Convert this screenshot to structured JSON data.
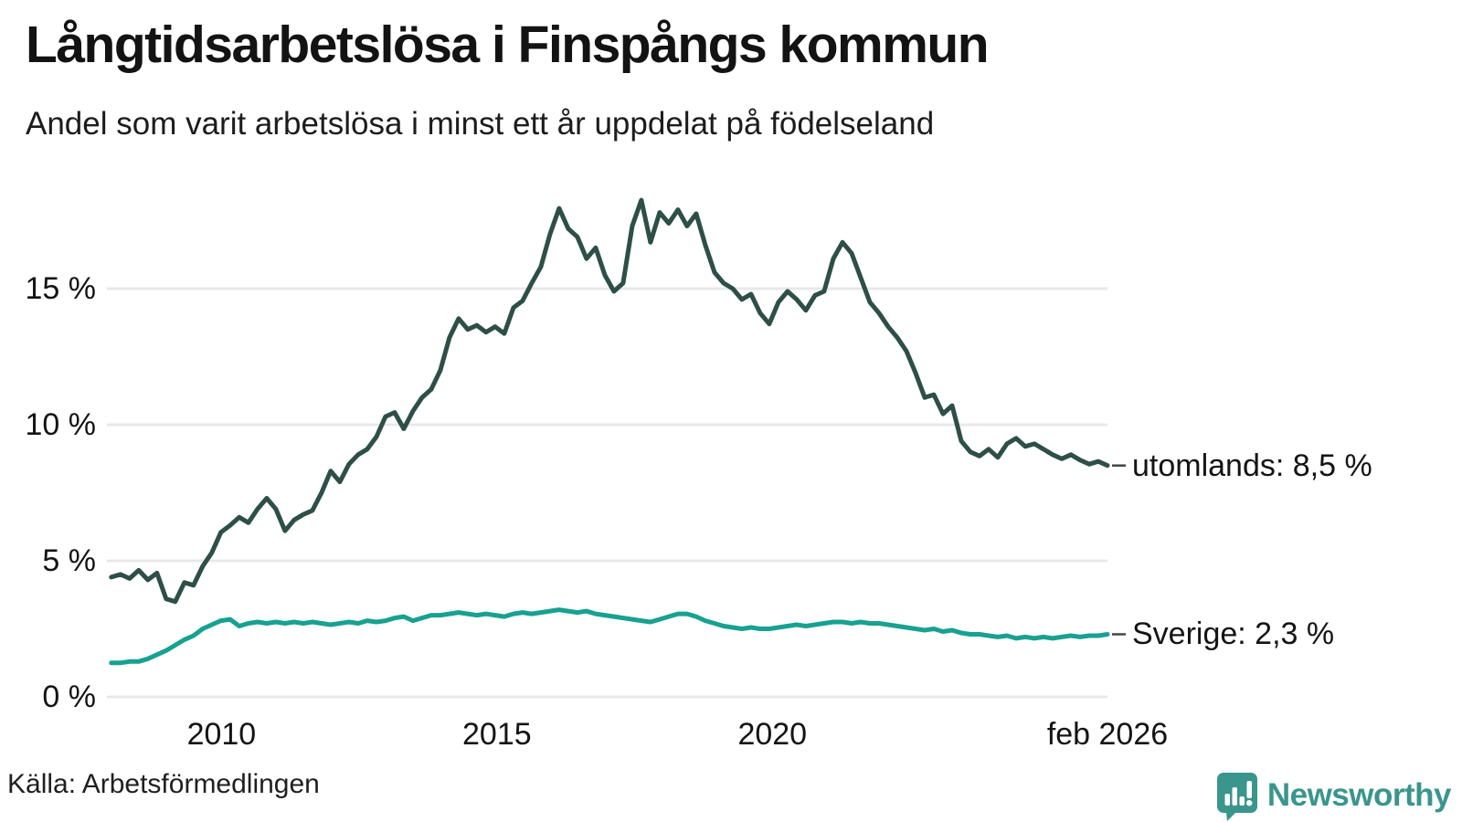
{
  "chart_data": {
    "type": "line",
    "title": "Långtidsarbetslösa i Finspångs kommun",
    "subtitle": "Andel som varit arbetslösa i minst ett år uppdelat på födelseland",
    "source": "Källa: Arbetsförmedlingen",
    "unit": "%",
    "grid": true,
    "legend_position": "end-of-line-labels",
    "x_axis": {
      "range": [
        2007.92,
        2026.083
      ],
      "ticks": [
        {
          "year": 2010,
          "label": "2010"
        },
        {
          "year": 2015,
          "label": "2015"
        },
        {
          "year": 2020,
          "label": "2020"
        },
        {
          "year": 2026.083,
          "label": "feb 2026"
        }
      ]
    },
    "y_axis": {
      "range": [
        0,
        18.6
      ],
      "ticks": [
        {
          "value": 0,
          "label": "0 %"
        },
        {
          "value": 5,
          "label": "5 %"
        },
        {
          "value": 10,
          "label": "10 %"
        },
        {
          "value": 15,
          "label": "15 %"
        }
      ]
    },
    "series": [
      {
        "name": "utomlands",
        "label": "utomlands: 8,5 %",
        "end_value": 8.5,
        "color": "#2d4f47",
        "x_start": 2008.0,
        "x_end": 2026.083,
        "values": [
          4.4,
          4.5,
          4.35,
          4.65,
          4.3,
          4.55,
          3.6,
          3.5,
          4.2,
          4.1,
          4.8,
          5.3,
          6.05,
          6.3,
          6.6,
          6.4,
          6.9,
          7.3,
          6.9,
          6.1,
          6.5,
          6.7,
          6.85,
          7.5,
          8.3,
          7.9,
          8.55,
          8.9,
          9.1,
          9.55,
          10.3,
          10.45,
          9.85,
          10.5,
          11.0,
          11.3,
          12.0,
          13.2,
          13.9,
          13.5,
          13.65,
          13.4,
          13.6,
          13.35,
          14.3,
          14.55,
          15.2,
          15.8,
          17.0,
          17.95,
          17.2,
          16.9,
          16.1,
          16.5,
          15.5,
          14.9,
          15.2,
          17.3,
          18.25,
          16.7,
          17.8,
          17.4,
          17.9,
          17.3,
          17.75,
          16.6,
          15.6,
          15.2,
          15.0,
          14.6,
          14.8,
          14.1,
          13.7,
          14.5,
          14.9,
          14.6,
          14.2,
          14.75,
          14.9,
          16.1,
          16.7,
          16.3,
          15.4,
          14.5,
          14.1,
          13.6,
          13.2,
          12.7,
          11.9,
          11.0,
          11.1,
          10.4,
          10.7,
          9.4,
          9.0,
          8.85,
          9.1,
          8.8,
          9.3,
          9.5,
          9.2,
          9.3,
          9.1,
          8.9,
          8.75,
          8.9,
          8.7,
          8.55,
          8.65,
          8.5
        ]
      },
      {
        "name": "Sverige",
        "label": "Sverige: 2,3 %",
        "end_value": 2.3,
        "color": "#18a191",
        "x_start": 2008.0,
        "x_end": 2026.083,
        "values": [
          1.25,
          1.25,
          1.3,
          1.3,
          1.4,
          1.55,
          1.7,
          1.9,
          2.1,
          2.25,
          2.5,
          2.65,
          2.8,
          2.85,
          2.6,
          2.7,
          2.75,
          2.7,
          2.75,
          2.7,
          2.75,
          2.7,
          2.75,
          2.7,
          2.65,
          2.7,
          2.75,
          2.7,
          2.8,
          2.75,
          2.8,
          2.9,
          2.95,
          2.8,
          2.9,
          3.0,
          3.0,
          3.05,
          3.1,
          3.05,
          3.0,
          3.05,
          3.0,
          2.95,
          3.05,
          3.1,
          3.05,
          3.1,
          3.15,
          3.2,
          3.15,
          3.1,
          3.15,
          3.05,
          3.0,
          2.95,
          2.9,
          2.85,
          2.8,
          2.75,
          2.85,
          2.95,
          3.05,
          3.05,
          2.95,
          2.8,
          2.7,
          2.6,
          2.55,
          2.5,
          2.55,
          2.5,
          2.5,
          2.55,
          2.6,
          2.65,
          2.6,
          2.65,
          2.7,
          2.75,
          2.75,
          2.7,
          2.75,
          2.7,
          2.7,
          2.65,
          2.6,
          2.55,
          2.5,
          2.45,
          2.5,
          2.4,
          2.45,
          2.35,
          2.3,
          2.3,
          2.25,
          2.2,
          2.25,
          2.15,
          2.2,
          2.15,
          2.2,
          2.15,
          2.2,
          2.25,
          2.2,
          2.25,
          2.25,
          2.3
        ]
      }
    ],
    "style": {
      "grid_color": "#e8e8ec",
      "leader_dash_color": "#444444",
      "text_color": "#141414"
    }
  },
  "branding": {
    "wordmark": "Newsworthy",
    "icon": "speech-bubble-with-bar-chart-and-exclamation",
    "color": "#3a958d"
  }
}
